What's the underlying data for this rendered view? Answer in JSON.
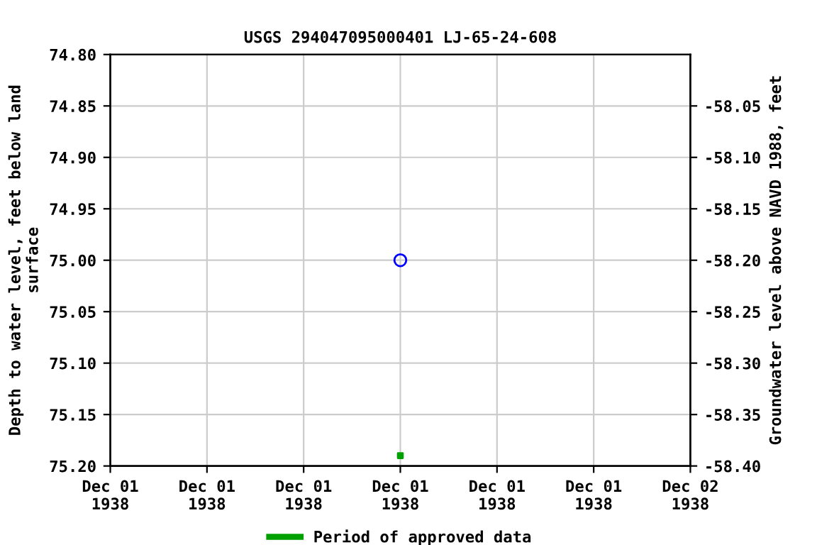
{
  "chart_data": {
    "type": "scatter",
    "title": "USGS 294047095000401 LJ-65-24-608",
    "ylabel": "Depth to water level, feet below land\nsurface",
    "y2label": "Groundwater level above NAVD 1988, feet",
    "series": [
      {
        "color": "#0000ff",
        "marker": "circle",
        "x": [
          "1938-12-01T12:00"
        ],
        "values": [
          75.0
        ]
      },
      {
        "name": "Period of approved data",
        "color": "#00a000",
        "marker": "square",
        "x": [
          "1938-12-01T12:00"
        ],
        "values": [
          75.19
        ]
      }
    ],
    "xlim": [
      "1938-12-01T00:00",
      "1938-12-02T00:00"
    ],
    "xticks": [
      {
        "value": "1938-12-01T00:00",
        "label": "Dec 01\n1938"
      },
      {
        "value": "1938-12-01T04:00",
        "label": "Dec 01\n1938"
      },
      {
        "value": "1938-12-01T08:00",
        "label": "Dec 01\n1938"
      },
      {
        "value": "1938-12-01T12:00",
        "label": "Dec 01\n1938"
      },
      {
        "value": "1938-12-01T16:00",
        "label": "Dec 01\n1938"
      },
      {
        "value": "1938-12-01T20:00",
        "label": "Dec 01\n1938"
      },
      {
        "value": "1938-12-02T00:00",
        "label": "Dec 02\n1938"
      }
    ],
    "ylim": [
      75.2,
      74.8
    ],
    "yticks": [
      {
        "value": 74.8,
        "label": "74.80"
      },
      {
        "value": 74.85,
        "label": "74.85"
      },
      {
        "value": 74.9,
        "label": "74.90"
      },
      {
        "value": 74.95,
        "label": "74.95"
      },
      {
        "value": 75.0,
        "label": "75.00"
      },
      {
        "value": 75.05,
        "label": "75.05"
      },
      {
        "value": 75.1,
        "label": "75.10"
      },
      {
        "value": 75.15,
        "label": "75.15"
      },
      {
        "value": 75.2,
        "label": "75.20"
      }
    ],
    "y2lim": [
      -58.4,
      -58.0
    ],
    "y2ticks": [
      {
        "value": -58.05,
        "label": "-58.05"
      },
      {
        "value": -58.1,
        "label": "-58.10"
      },
      {
        "value": -58.15,
        "label": "-58.15"
      },
      {
        "value": -58.2,
        "label": "-58.20"
      },
      {
        "value": -58.25,
        "label": "-58.25"
      },
      {
        "value": -58.3,
        "label": "-58.30"
      },
      {
        "value": -58.35,
        "label": "-58.35"
      },
      {
        "value": -58.4,
        "label": "-58.40"
      }
    ],
    "grid": true,
    "legend": "bottom"
  }
}
